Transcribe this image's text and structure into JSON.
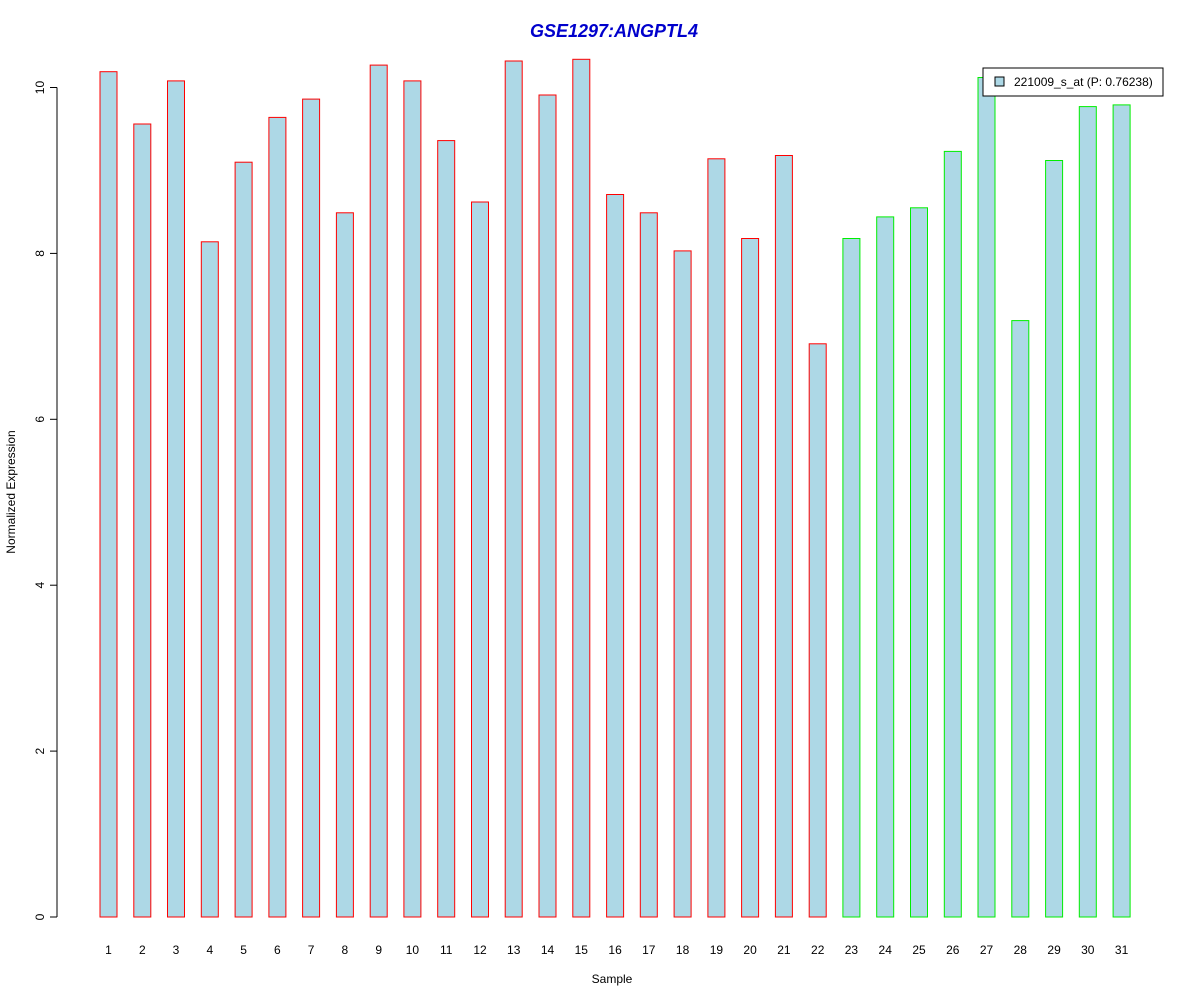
{
  "chart_data": {
    "type": "bar",
    "title": "GSE1297:ANGPTL4",
    "xlabel": "Sample",
    "ylabel": "Normalized Expression",
    "ylim": [
      0,
      10.5
    ],
    "yticks": [
      0,
      2,
      4,
      6,
      8,
      10
    ],
    "grid": false,
    "legend_placement": "top-right",
    "categories": [
      "1",
      "2",
      "3",
      "4",
      "5",
      "6",
      "7",
      "8",
      "9",
      "10",
      "11",
      "12",
      "13",
      "14",
      "15",
      "16",
      "17",
      "18",
      "19",
      "20",
      "21",
      "22",
      "23",
      "24",
      "25",
      "26",
      "27",
      "28",
      "29",
      "30",
      "31"
    ],
    "series": [
      {
        "name": "221009_s_at (P: 0.76238)",
        "values": [
          10.19,
          9.56,
          10.08,
          8.14,
          9.1,
          9.64,
          9.86,
          8.49,
          10.27,
          10.08,
          9.36,
          8.62,
          10.32,
          9.91,
          10.34,
          8.71,
          8.49,
          8.03,
          9.14,
          8.18,
          9.18,
          6.91,
          8.18,
          8.44,
          8.55,
          9.23,
          10.12,
          7.19,
          9.12,
          9.77,
          9.79
        ]
      }
    ],
    "groups": [
      {
        "from": 1,
        "to": 22,
        "border_color": "#ff0000"
      },
      {
        "from": 23,
        "to": 31,
        "border_color": "#00ee00"
      }
    ],
    "colors": {
      "bar_fill": "#add8e6",
      "title": "#0000cc",
      "axis": "#000000"
    }
  }
}
